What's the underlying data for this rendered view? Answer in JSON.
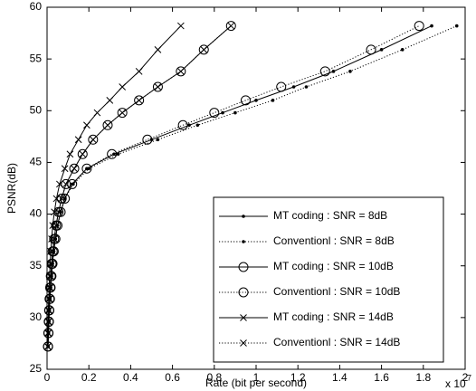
{
  "chart_data": {
    "type": "line",
    "xlabel": "Rate (bit per second)",
    "ylabel": "PSNR(dB)",
    "x_multiplier": {
      "base": "x 10",
      "exponent": "7"
    },
    "xlim": [
      0,
      2
    ],
    "xticks": [
      0,
      0.2,
      0.4,
      0.6,
      0.8,
      1,
      1.2,
      1.4,
      1.6,
      1.8,
      2
    ],
    "ylim": [
      25,
      60
    ],
    "yticks": [
      25,
      30,
      35,
      40,
      45,
      50,
      55,
      60
    ],
    "grid": false,
    "legend": "lower right",
    "series": [
      {
        "name": "MT coding : SNR = 8dB",
        "color": "#000000",
        "line_style": "solid",
        "marker": "dot",
        "x": [
          0.005,
          0.007,
          0.009,
          0.011,
          0.014,
          0.017,
          0.021,
          0.026,
          0.032,
          0.04,
          0.05,
          0.065,
          0.085,
          0.12,
          0.19,
          0.32,
          0.5,
          0.68,
          0.84,
          1.0,
          1.18,
          1.37,
          1.6,
          1.84
        ],
        "values": [
          27.2,
          28.5,
          29.6,
          30.7,
          31.8,
          32.9,
          34,
          35.2,
          36.4,
          37.6,
          38.9,
          40.2,
          41.5,
          42.9,
          44.4,
          45.8,
          47.2,
          48.6,
          49.8,
          51,
          52.3,
          53.8,
          55.9,
          58.2
        ]
      },
      {
        "name": "Conventionl : SNR = 8dB",
        "color": "#000000",
        "line_style": "dotted",
        "marker": "dot",
        "x": [
          0.005,
          0.007,
          0.009,
          0.011,
          0.014,
          0.017,
          0.021,
          0.026,
          0.032,
          0.04,
          0.05,
          0.065,
          0.085,
          0.125,
          0.2,
          0.34,
          0.53,
          0.72,
          0.9,
          1.08,
          1.24,
          1.45,
          1.7,
          1.96
        ],
        "values": [
          27.2,
          28.5,
          29.6,
          30.7,
          31.8,
          32.9,
          34,
          35.2,
          36.4,
          37.6,
          38.9,
          40.2,
          41.5,
          42.9,
          44.4,
          45.8,
          47.2,
          48.6,
          49.8,
          51,
          52.3,
          53.8,
          55.9,
          58.2
        ]
      },
      {
        "name": "MT coding : SNR = 10dB",
        "color": "#000000",
        "line_style": "solid",
        "marker": "circle",
        "x": [
          0.004,
          0.006,
          0.008,
          0.01,
          0.012,
          0.015,
          0.018,
          0.022,
          0.027,
          0.034,
          0.043,
          0.055,
          0.07,
          0.09,
          0.13,
          0.17,
          0.22,
          0.29,
          0.36,
          0.44,
          0.53,
          0.64,
          0.75,
          0.88
        ],
        "values": [
          27.2,
          28.5,
          29.6,
          30.7,
          31.8,
          32.9,
          34,
          35.2,
          36.4,
          37.6,
          38.9,
          40.2,
          41.5,
          42.9,
          44.4,
          45.8,
          47.2,
          48.6,
          49.8,
          51,
          52.3,
          53.8,
          55.9,
          58.2
        ]
      },
      {
        "name": "Conventionl : SNR = 10dB",
        "color": "#000000",
        "line_style": "dotted",
        "marker": "circle",
        "x": [
          0.005,
          0.007,
          0.009,
          0.011,
          0.014,
          0.017,
          0.021,
          0.026,
          0.032,
          0.04,
          0.05,
          0.065,
          0.085,
          0.12,
          0.19,
          0.31,
          0.48,
          0.65,
          0.8,
          0.95,
          1.12,
          1.33,
          1.55,
          1.78
        ],
        "values": [
          27.2,
          28.5,
          29.6,
          30.7,
          31.8,
          32.9,
          34,
          35.2,
          36.4,
          37.6,
          38.9,
          40.2,
          41.5,
          42.9,
          44.4,
          45.8,
          47.2,
          48.6,
          49.8,
          51,
          52.3,
          53.8,
          55.9,
          58.2
        ]
      },
      {
        "name": "MT coding : SNR = 14dB",
        "color": "#000000",
        "line_style": "solid",
        "marker": "x",
        "x": [
          0.003,
          0.004,
          0.005,
          0.006,
          0.008,
          0.01,
          0.012,
          0.015,
          0.018,
          0.022,
          0.027,
          0.035,
          0.045,
          0.06,
          0.085,
          0.11,
          0.15,
          0.19,
          0.24,
          0.3,
          0.36,
          0.44,
          0.53,
          0.64
        ],
        "values": [
          27.2,
          28.5,
          29.6,
          30.7,
          31.8,
          32.9,
          34,
          35.2,
          36.4,
          37.6,
          38.9,
          40.2,
          41.5,
          42.9,
          44.4,
          45.8,
          47.2,
          48.6,
          49.8,
          51,
          52.3,
          53.8,
          55.9,
          58.2
        ]
      },
      {
        "name": "Conventionl : SNR = 14dB",
        "color": "#000000",
        "line_style": "dotted",
        "marker": "x",
        "x": [
          0.004,
          0.006,
          0.008,
          0.01,
          0.012,
          0.015,
          0.018,
          0.022,
          0.027,
          0.034,
          0.043,
          0.055,
          0.07,
          0.09,
          0.13,
          0.17,
          0.22,
          0.29,
          0.36,
          0.44,
          0.53,
          0.64,
          0.75,
          0.88
        ],
        "values": [
          27.2,
          28.5,
          29.6,
          30.7,
          31.8,
          32.9,
          34,
          35.2,
          36.4,
          37.6,
          38.9,
          40.2,
          41.5,
          42.9,
          44.4,
          45.8,
          47.2,
          48.6,
          49.8,
          51,
          52.3,
          53.8,
          55.9,
          58.2
        ]
      }
    ]
  }
}
